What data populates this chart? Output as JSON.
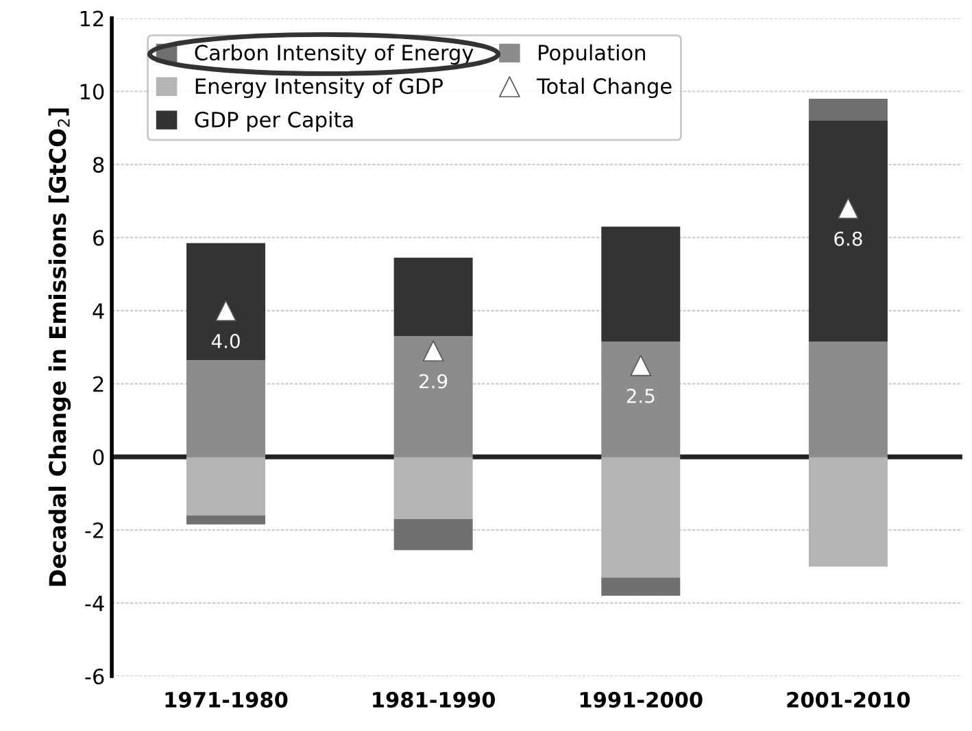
{
  "chart_data": {
    "type": "bar",
    "stacked": true,
    "ylabel": "Decadal Change in Emissions [GtCO$_{2}$]",
    "categories": [
      "1971-1980",
      "1981-1990",
      "1991-2000",
      "2001-2010"
    ],
    "series": [
      {
        "name": "Population",
        "color": "#8c8c8c",
        "values": [
          2.65,
          3.3,
          3.15,
          3.15
        ]
      },
      {
        "name": "GDP per Capita",
        "color": "#333333",
        "values": [
          3.2,
          2.15,
          3.15,
          6.05
        ]
      },
      {
        "name": "Energy Intensity of GDP",
        "color": "#b4b4b4",
        "values": [
          -1.6,
          -1.7,
          -3.3,
          -3.0
        ]
      },
      {
        "name": "Carbon Intensity of Energy",
        "color": "#707070",
        "values": [
          -0.25,
          -0.85,
          -0.5,
          0.6
        ]
      },
      {
        "name": "Total Change",
        "type": "scatter",
        "marker": "triangle",
        "color": "#ffffff",
        "values": [
          4.0,
          2.9,
          2.5,
          6.8
        ],
        "value_labels": [
          "4.0",
          "2.9",
          "2.5",
          "6.8"
        ]
      }
    ],
    "ylim": [
      -6,
      12
    ],
    "yticks": [
      -6,
      -4,
      -2,
      0,
      2,
      4,
      6,
      8,
      10,
      12
    ],
    "grid": "y",
    "legend": "top left",
    "ref_lines": [
      {
        "axis": "y",
        "value": 0,
        "color": "#222222"
      }
    ]
  }
}
